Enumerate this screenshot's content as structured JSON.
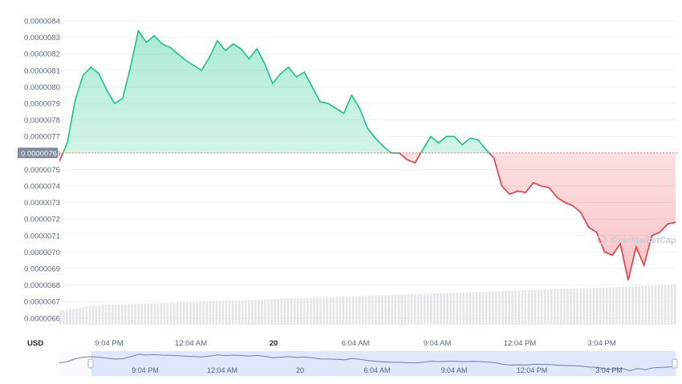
{
  "chart_data": {
    "type": "area",
    "currency_label": "USD",
    "current_price_label": "0.0000076",
    "watermark": "CoinMarketCap",
    "y_ticks": [
      "0.0000084",
      "0.0000083",
      "0.0000082",
      "0.0000081",
      "0.0000080",
      "0.0000079",
      "0.0000078",
      "0.0000077",
      "0.0000076",
      "0.0000075",
      "0.0000074",
      "0.0000073",
      "0.0000072",
      "0.0000071",
      "0.0000070",
      "0.0000069",
      "0.0000068",
      "0.0000067",
      "0.0000066"
    ],
    "y_range": [
      6.56e-06,
      8.41e-06
    ],
    "baseline": 7.6e-06,
    "colors": {
      "up": "#16c784",
      "down": "#ea3943",
      "volume": "#e3e5e8",
      "grid": "#eff2f5",
      "baseline": "#ea3943"
    },
    "x_ticks": [
      "9:04 PM",
      "12:04 AM",
      "20",
      "6:04 AM",
      "9:04 AM",
      "12:04 PM",
      "3:04 PM"
    ],
    "x_tick_bold": [
      false,
      false,
      true,
      false,
      false,
      false,
      false
    ],
    "navigator_ticks": [
      "9:04 PM",
      "12:04 AM",
      "20",
      "6:04 AM",
      "9:04 AM",
      "12:04 PM",
      "3:04 PM"
    ],
    "price_series": [
      7.55e-06,
      7.66e-06,
      7.92e-06,
      8.07e-06,
      8.12e-06,
      8.08e-06,
      7.98e-06,
      7.9e-06,
      7.93e-06,
      8.12e-06,
      8.34e-06,
      8.27e-06,
      8.31e-06,
      8.26e-06,
      8.24e-06,
      8.2e-06,
      8.16e-06,
      8.13e-06,
      8.1e-06,
      8.18e-06,
      8.28e-06,
      8.22e-06,
      8.26e-06,
      8.23e-06,
      8.17e-06,
      8.23e-06,
      8.14e-06,
      8.02e-06,
      8.08e-06,
      8.12e-06,
      8.06e-06,
      8.09e-06,
      8e-06,
      7.91e-06,
      7.9e-06,
      7.87e-06,
      7.84e-06,
      7.95e-06,
      7.87e-06,
      7.75e-06,
      7.69e-06,
      7.64e-06,
      7.6e-06,
      7.6e-06,
      7.56e-06,
      7.54e-06,
      7.62e-06,
      7.7e-06,
      7.66e-06,
      7.7e-06,
      7.7e-06,
      7.65e-06,
      7.69e-06,
      7.68e-06,
      7.62e-06,
      7.57e-06,
      7.4e-06,
      7.35e-06,
      7.37e-06,
      7.36e-06,
      7.42e-06,
      7.4e-06,
      7.39e-06,
      7.33e-06,
      7.3e-06,
      7.28e-06,
      7.24e-06,
      7.15e-06,
      7.12e-06,
      7e-06,
      6.98e-06,
      7.05e-06,
      6.83e-06,
      7.03e-06,
      6.92e-06,
      7.1e-06,
      7.12e-06,
      7.17e-06,
      7.18e-06
    ],
    "volume_series": [
      6.6e-06,
      6.8e-06
    ]
  }
}
